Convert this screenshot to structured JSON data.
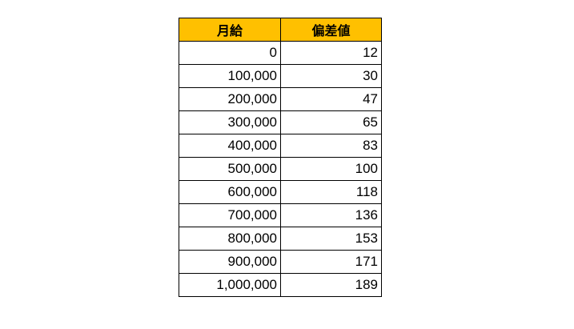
{
  "table": {
    "headers": [
      "月給",
      "偏差値"
    ],
    "header_color": "#FFC000",
    "rows": [
      [
        "0",
        "12"
      ],
      [
        "100,000",
        "30"
      ],
      [
        "200,000",
        "47"
      ],
      [
        "300,000",
        "65"
      ],
      [
        "400,000",
        "83"
      ],
      [
        "500,000",
        "100"
      ],
      [
        "600,000",
        "118"
      ],
      [
        "700,000",
        "136"
      ],
      [
        "800,000",
        "153"
      ],
      [
        "900,000",
        "171"
      ],
      [
        "1,000,000",
        "189"
      ]
    ]
  }
}
